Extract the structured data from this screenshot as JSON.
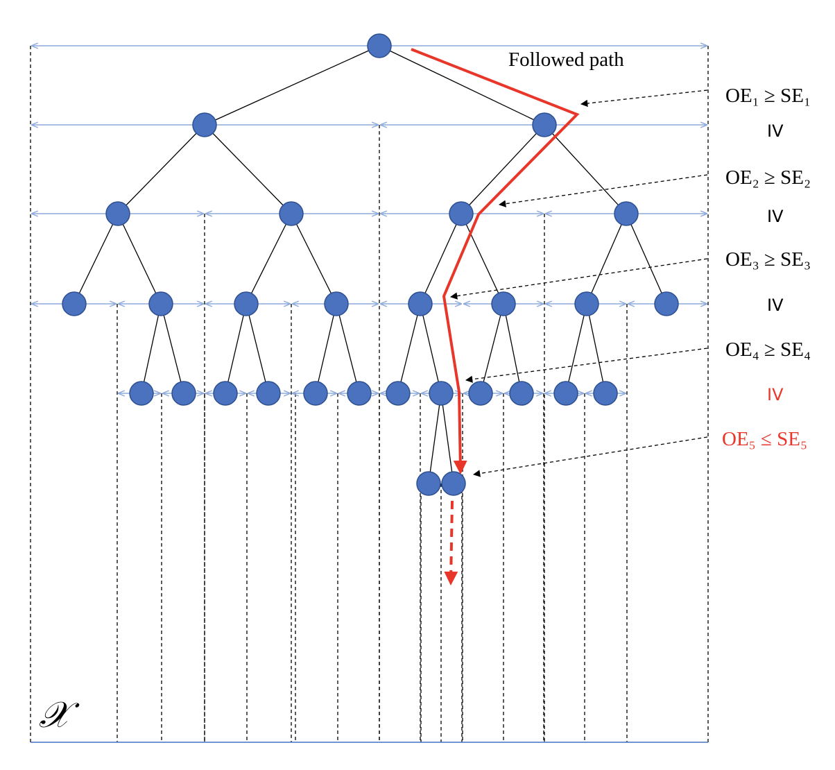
{
  "title": "Followed path",
  "space_label": "𝒳",
  "conditions": [
    {
      "text": "OE₁ ≥ SE₁",
      "color": "#000000"
    },
    {
      "text": "OE₂ ≥ SE₂",
      "color": "#000000"
    },
    {
      "text": "OE₃ ≥ SE₃",
      "color": "#000000"
    },
    {
      "text": "OE₄ ≥ SE₄",
      "color": "#000000"
    },
    {
      "text": "OE₅ ≤ SE₅",
      "color": "#e8372a"
    }
  ],
  "separators": [
    {
      "text": "IV",
      "color": "#000000"
    },
    {
      "text": "IV",
      "color": "#000000"
    },
    {
      "text": "IV",
      "color": "#000000"
    },
    {
      "text": "IV",
      "color": "#e8372a"
    }
  ],
  "colors": {
    "node_fill": "#4a72bf",
    "node_stroke": "#2d4f8f",
    "path": "#e8372a",
    "interval": "#8eaadb",
    "edge": "#000000"
  }
}
